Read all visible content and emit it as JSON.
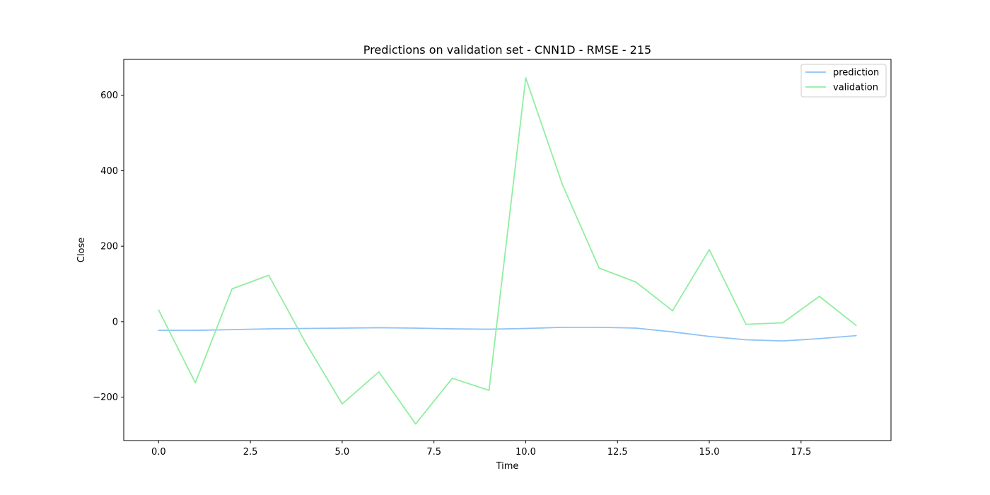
{
  "chart_data": {
    "type": "line",
    "title": "Predictions on validation set - CNN1D - RMSE - 215",
    "xlabel": "Time",
    "ylabel": "Close",
    "x": [
      0,
      1,
      2,
      3,
      4,
      5,
      6,
      7,
      8,
      9,
      10,
      11,
      12,
      13,
      14,
      15,
      16,
      17,
      18,
      19
    ],
    "xlim": [
      -0.95,
      19.95
    ],
    "ylim": [
      -315,
      695
    ],
    "xticks": [
      0.0,
      2.5,
      5.0,
      7.5,
      10.0,
      12.5,
      15.0,
      17.5
    ],
    "xtick_labels": [
      "0.0",
      "2.5",
      "5.0",
      "7.5",
      "10.0",
      "12.5",
      "15.0",
      "17.5"
    ],
    "yticks": [
      -200,
      0,
      200,
      400,
      600
    ],
    "ytick_labels": [
      "−200",
      "0",
      "200",
      "400",
      "600"
    ],
    "grid": false,
    "legend_position": "top-right",
    "series": [
      {
        "name": "prediction",
        "color": "#8fc3f6",
        "values": [
          -23,
          -23,
          -21,
          -19,
          -18,
          -17,
          -16,
          -17,
          -19,
          -20,
          -18,
          -15,
          -15,
          -17,
          -27,
          -39,
          -48,
          -51,
          -45,
          -37
        ]
      },
      {
        "name": "validation",
        "color": "#90ee9f",
        "values": [
          31,
          -162,
          87,
          123,
          -55,
          -218,
          -133,
          -271,
          -150,
          -182,
          646,
          363,
          142,
          105,
          29,
          191,
          -7,
          -3,
          67,
          -10
        ]
      }
    ]
  }
}
